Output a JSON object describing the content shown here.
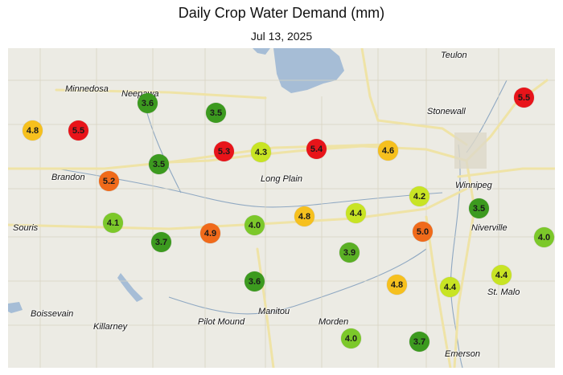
{
  "title": "Daily Crop Water Demand (mm)",
  "date": "Jul 13, 2025",
  "colors": {
    "land": "#ecebe4",
    "water": "#a6bdd6",
    "highway": "#efe3a6",
    "road": "#d9d6c8"
  },
  "places": {
    "teulon": "Teulon",
    "minnedosa": "Minnedosa",
    "neepawa": "Neepawa",
    "stonewall": "Stonewall",
    "winnipeg": "Winnipeg",
    "brandon": "Brandon",
    "long_plain": "Long Plain",
    "souris": "Souris",
    "niverville": "Niverville",
    "st_malo": "St. Malo",
    "boissevain": "Boissevain",
    "killarney": "Killarney",
    "pilot_mound": "Pilot Mound",
    "manitou": "Manitou",
    "morden": "Morden",
    "emerson": "Emerson"
  },
  "markers": [
    {
      "id": "m1",
      "value": "5.5",
      "level": "very-high",
      "color": "#e8141a"
    },
    {
      "id": "m2",
      "value": "3.6",
      "level": "low",
      "color": "#3c9a1f"
    },
    {
      "id": "m3",
      "value": "3.5",
      "level": "low",
      "color": "#3c9a1f"
    },
    {
      "id": "m4",
      "value": "4.8",
      "level": "high",
      "color": "#f6c01e"
    },
    {
      "id": "m5",
      "value": "5.5",
      "level": "very-high",
      "color": "#e8141a"
    },
    {
      "id": "m6",
      "value": "5.3",
      "level": "very-high",
      "color": "#e8141a"
    },
    {
      "id": "m7",
      "value": "4.3",
      "level": "moderate-high",
      "color": "#c8e424"
    },
    {
      "id": "m8",
      "value": "5.4",
      "level": "very-high",
      "color": "#e8141a"
    },
    {
      "id": "m9",
      "value": "4.6",
      "level": "high",
      "color": "#f6c01e"
    },
    {
      "id": "m10",
      "value": "3.5",
      "level": "low",
      "color": "#3c9a1f"
    },
    {
      "id": "m11",
      "value": "5.2",
      "level": "very-high-orange",
      "color": "#f06a1a"
    },
    {
      "id": "m12",
      "value": "4.2",
      "level": "moderate-high",
      "color": "#c8e424"
    },
    {
      "id": "m13",
      "value": "3.5",
      "level": "low",
      "color": "#3c9a1f"
    },
    {
      "id": "m14",
      "value": "4.1",
      "level": "moderate",
      "color": "#7cc82a"
    },
    {
      "id": "m15",
      "value": "4.0",
      "level": "moderate",
      "color": "#7cc82a"
    },
    {
      "id": "m16",
      "value": "4.8",
      "level": "high",
      "color": "#f6c01e"
    },
    {
      "id": "m17",
      "value": "4.4",
      "level": "moderate-high",
      "color": "#c8e424"
    },
    {
      "id": "m18",
      "value": "5.0",
      "level": "very-high-orange",
      "color": "#f06a1a"
    },
    {
      "id": "m19",
      "value": "4.0",
      "level": "moderate",
      "color": "#7cc82a"
    },
    {
      "id": "m20",
      "value": "3.7",
      "level": "low",
      "color": "#3c9a1f"
    },
    {
      "id": "m21",
      "value": "4.9",
      "level": "very-high-orange",
      "color": "#f06a1a"
    },
    {
      "id": "m22",
      "value": "3.9",
      "level": "low-moderate",
      "color": "#5aaf24"
    },
    {
      "id": "m23",
      "value": "3.6",
      "level": "low",
      "color": "#3c9a1f"
    },
    {
      "id": "m24",
      "value": "4.8",
      "level": "high",
      "color": "#f6c01e"
    },
    {
      "id": "m25",
      "value": "4.4",
      "level": "moderate-high",
      "color": "#c8e424"
    },
    {
      "id": "m26",
      "value": "4.4",
      "level": "moderate-high",
      "color": "#c8e424"
    },
    {
      "id": "m27",
      "value": "4.0",
      "level": "moderate",
      "color": "#7cc82a"
    },
    {
      "id": "m28",
      "value": "3.7",
      "level": "low",
      "color": "#3c9a1f"
    }
  ]
}
